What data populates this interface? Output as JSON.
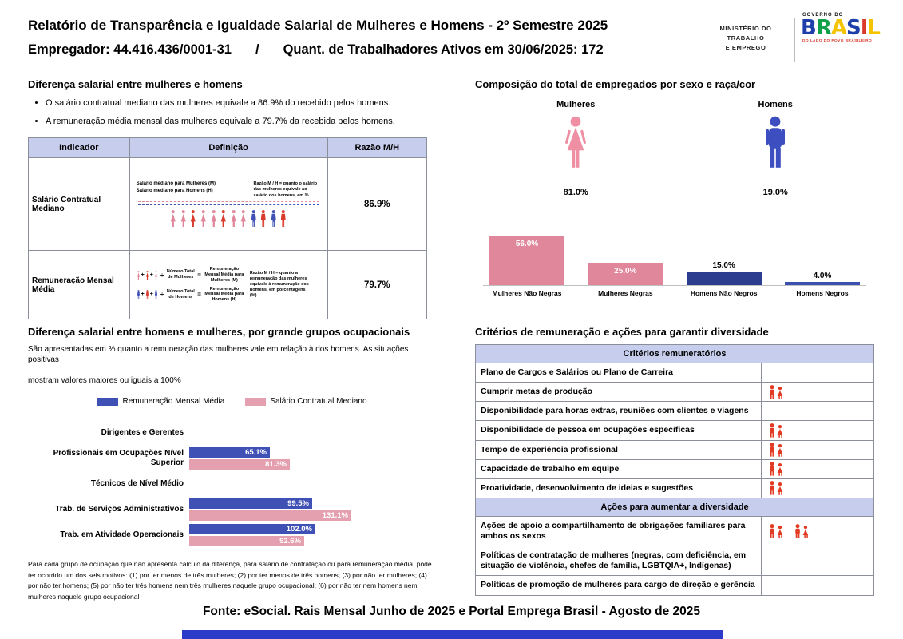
{
  "header": {
    "title": "Relatório de Transparência e Igualdade Salarial de Mulheres e Homens - 2º Semestre 2025",
    "employer": "Empregador: 44.416.436/0001-31",
    "separator": "/",
    "workers": "Quant. de Trabalhadores Ativos em 30/06/2025: 172",
    "ministry_lines": [
      "MINISTÉRIO DO",
      "TRABALHO",
      "E EMPREGO"
    ],
    "gov": {
      "top": "GOVERNO DO",
      "name": "BRASIL",
      "letter_colors": [
        "#1d3faa",
        "#11a04a",
        "#f5c400",
        "#1d3faa",
        "#d93a2b",
        "#f5c400"
      ],
      "bottom": "DO LADO DO POVO BRASILEIRO",
      "bottom_color": "#d93a2b"
    }
  },
  "salary_gap": {
    "title": "Diferença salarial entre mulheres e homens",
    "bullets": [
      "O salário contratual mediano das mulheres equivale a 86.9% do recebido pelos homens.",
      "A remuneração média mensal das mulheres equivale a 79.7% da recebida pelos homens."
    ],
    "table_headers": [
      "Indicador",
      "Definição",
      "Razão M/H"
    ],
    "row1": {
      "indicator": "Salário Contratual Mediano",
      "label_women": "Salário mediano para Mulheres (M)",
      "label_men": "Salário mediano para Homens (H)",
      "note": "Razão M / H = quanto o salário das mulheres equivale ao salário dos homens, em %",
      "ratio": "86.9%"
    },
    "row2": {
      "indicator": "Remuneração Mensal Média",
      "formula_divisor_1": "Número Total de Mulheres",
      "formula_result_1": "Remuneração Mensal Média para Mulheres (M)",
      "formula_divisor_2": "Número Total de Homens",
      "formula_result_2": "Remuneração Mensal Média para Homens (H)",
      "note": "Razão M / H = quanto a remuneração das mulheres equivale à remuneração dos homens, em porcentagens (%)",
      "ratio": "79.7%"
    }
  },
  "composition": {
    "title": "Composição do total de empregados por sexo e raça/cor",
    "women_label": "Mulheres",
    "women_value": "81.0%",
    "men_label": "Homens",
    "men_value": "19.0%",
    "women_color": "#ee8fa4",
    "men_color": "#3d4fc0",
    "chart_data": {
      "type": "bar",
      "categories": [
        "Mulheres Não Negras",
        "Mulheres Negras",
        "Homens Não Negros",
        "Homens Negros"
      ],
      "values": [
        56.0,
        25.0,
        15.0,
        4.0
      ],
      "value_labels": [
        "56.0%",
        "25.0%",
        "15.0%",
        "4.0%"
      ],
      "colors": [
        "#e0879b",
        "#e0879b",
        "#2c3c8e",
        "#3c50b1"
      ],
      "ylim": [
        0,
        60
      ],
      "grid": false,
      "legend": "none"
    }
  },
  "occupational": {
    "title": "Diferença salarial entre homens e mulheres, por grande grupos ocupacionais",
    "subtitle_lines": [
      "São apresentadas em % quanto a remuneração das mulheres vale em relação à dos homens. As situações positivas",
      "mostram valores maiores ou iguais a 100%"
    ],
    "legend": [
      {
        "label": "Remuneração Mensal Média",
        "color": "#3f51b5"
      },
      {
        "label": "Salário Contratual Mediano",
        "color": "#e5a0b0"
      }
    ],
    "chart_data": {
      "type": "bar",
      "orientation": "horizontal",
      "categories": [
        "Dirigentes e Gerentes",
        "Profissionais em Ocupações Nível Superior",
        "Técnicos de Nível Médio",
        "Trab. de Serviços Administrativos",
        "Trab. em Atividade Operacionais"
      ],
      "series": [
        {
          "name": "Remuneração Mensal Média",
          "color": "#3f51b5",
          "values": [
            null,
            65.1,
            null,
            99.5,
            102.0
          ]
        },
        {
          "name": "Salário Contratual Mediano",
          "color": "#e5a0b0",
          "values": [
            null,
            81.3,
            null,
            131.1,
            92.6
          ]
        }
      ],
      "value_suffix": "%",
      "xlim": [
        0,
        140
      ]
    },
    "footnote": "Para cada grupo de ocupação que não apresenta cálculo da diferença, para salário de contratação ou para remuneração média, pode ter ocorrido um dos seis motivos: (1) por ter menos de três mulheres; (2) por ter menos de três homens; (3) por não ter mulheres; (4) por não ter homens; (5) por não ter três homens nem três mulheres naquele grupo ocupacional; (6) por não ter nem homens nem mulheres naquele grupo ocupacional"
  },
  "criteria": {
    "title": "Critérios de remuneração e ações para garantir diversidade",
    "icon_color": "#e23b24",
    "sections": [
      {
        "header": "Critérios remuneratórios",
        "rows": [
          {
            "label": "Plano de Cargos e Salários ou Plano de Carreira",
            "icons": 0
          },
          {
            "label": "Cumprir metas de produção",
            "icons": 1
          },
          {
            "label": "Disponibilidade para horas extras, reuniões com clientes e viagens",
            "icons": 0
          },
          {
            "label": "Disponibilidade de pessoa em ocupações específicas",
            "icons": 1
          },
          {
            "label": "Tempo de experiência profissional",
            "icons": 1
          },
          {
            "label": "Capacidade de trabalho em equipe",
            "icons": 1
          },
          {
            "label": "Proatividade, desenvolvimento de ideias e sugestões",
            "icons": 1
          }
        ]
      },
      {
        "header": "Ações para aumentar a diversidade",
        "rows": [
          {
            "label": "Ações de apoio a compartilhamento de obrigações familiares para ambos os sexos",
            "icons": 2
          },
          {
            "label": "Políticas de contratação de mulheres (negras, com deficiência, em situação de violência, chefes de família, LGBTQIA+, Indígenas)",
            "icons": 0
          },
          {
            "label": "Políticas de promoção de mulheres para cargo de direção e gerência",
            "icons": 0
          }
        ]
      }
    ]
  },
  "footer": {
    "source": "Fonte: eSocial. Rais Mensal Junho de 2025 e Portal Emprega Brasil - Agosto de 2025"
  },
  "colors": {
    "women_pink": "#e0879b",
    "men_blue": "#3c50b1",
    "men_navy": "#2c3c8e",
    "table_header_bg": "#c7cdec",
    "bottom_bar": "#2c3cc8",
    "accent_red": "#e23b24"
  }
}
